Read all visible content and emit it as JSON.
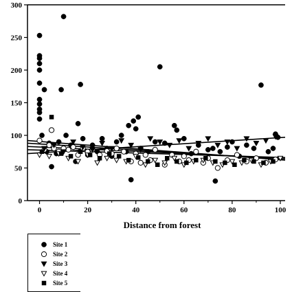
{
  "chart_data": {
    "type": "scatter",
    "title": "",
    "xlabel": "Distance from forest",
    "ylabel": "",
    "xlim": [
      -5,
      102
    ],
    "ylim": [
      0,
      300
    ],
    "xticks": [
      0,
      20,
      40,
      60,
      80,
      100
    ],
    "yticks": [
      0,
      50,
      100,
      150,
      200,
      250,
      300
    ],
    "legend_position": "bottom-left-outside",
    "series": [
      {
        "name": "Site 1",
        "marker": "filled-circle",
        "x": [
          0,
          0,
          0,
          0,
          0,
          0,
          0,
          0,
          0,
          0,
          0,
          1,
          2,
          3,
          4,
          5,
          7,
          8,
          9,
          10,
          11,
          13,
          15,
          16,
          17,
          18,
          20,
          22,
          24,
          26,
          28,
          30,
          32,
          34,
          36,
          37,
          38,
          39,
          40,
          41,
          42,
          45,
          48,
          50,
          52,
          55,
          56,
          57,
          60,
          63,
          66,
          70,
          72,
          73,
          75,
          78,
          80,
          83,
          86,
          89,
          92,
          95,
          97,
          98,
          99
        ],
        "y": [
          253,
          222,
          218,
          210,
          200,
          180,
          155,
          148,
          140,
          135,
          125,
          100,
          170,
          75,
          88,
          52,
          72,
          90,
          170,
          282,
          100,
          85,
          60,
          118,
          178,
          95,
          70,
          85,
          75,
          95,
          80,
          68,
          90,
          100,
          75,
          115,
          32,
          122,
          110,
          128,
          80,
          75,
          90,
          205,
          88,
          70,
          115,
          108,
          95,
          72,
          85,
          78,
          80,
          30,
          75,
          82,
          90,
          68,
          85,
          80,
          177,
          75,
          80,
          102,
          97
        ]
      },
      {
        "name": "Site 2",
        "marker": "open-circle",
        "x": [
          0,
          2,
          4,
          5,
          6,
          8,
          10,
          12,
          14,
          16,
          18,
          20,
          22,
          25,
          28,
          30,
          32,
          35,
          38,
          40,
          42,
          44,
          46,
          48,
          52,
          55,
          58,
          60,
          62,
          65,
          68,
          70,
          74,
          78,
          82,
          86,
          90,
          94,
          98
        ],
        "y": [
          92,
          78,
          85,
          108,
          80,
          75,
          80,
          78,
          82,
          70,
          80,
          75,
          78,
          70,
          76,
          72,
          80,
          75,
          60,
          72,
          58,
          70,
          62,
          78,
          55,
          70,
          60,
          68,
          62,
          75,
          58,
          65,
          50,
          62,
          70,
          60,
          65,
          58,
          63
        ]
      },
      {
        "name": "Site 3",
        "marker": "filled-triangle-down",
        "x": [
          2,
          6,
          10,
          14,
          18,
          22,
          26,
          30,
          34,
          38,
          42,
          46,
          50,
          54,
          58,
          62,
          66,
          70,
          74,
          78,
          82,
          86,
          90,
          94,
          98
        ],
        "y": [
          80,
          85,
          75,
          90,
          82,
          78,
          88,
          80,
          92,
          85,
          78,
          95,
          90,
          85,
          92,
          80,
          88,
          95,
          85,
          90,
          80,
          95,
          88,
          92,
          98
        ]
      },
      {
        "name": "Site 4",
        "marker": "open-triangle-down",
        "x": [
          0,
          4,
          8,
          12,
          16,
          20,
          24,
          28,
          32,
          36,
          40,
          44,
          48,
          52,
          56,
          60,
          64,
          68,
          72,
          76,
          80,
          84,
          88,
          92,
          96,
          100
        ],
        "y": [
          70,
          68,
          72,
          65,
          60,
          70,
          58,
          65,
          62,
          60,
          68,
          55,
          62,
          58,
          65,
          55,
          60,
          62,
          58,
          55,
          60,
          58,
          62,
          55,
          60,
          65
        ]
      },
      {
        "name": "Site 5",
        "marker": "filled-square",
        "x": [
          1,
          5,
          9,
          13,
          17,
          21,
          25,
          29,
          33,
          37,
          41,
          45,
          49,
          53,
          57,
          61,
          65,
          69,
          73,
          77,
          81,
          85,
          89,
          93,
          97
        ],
        "y": [
          75,
          128,
          72,
          68,
          75,
          70,
          65,
          72,
          68,
          62,
          66,
          60,
          55,
          65,
          60,
          58,
          62,
          65,
          60,
          58,
          55,
          62,
          60,
          58,
          60
        ]
      }
    ],
    "trend_lines": [
      {
        "x": [
          -5,
          102
        ],
        "y": [
          92,
          62
        ]
      },
      {
        "x": [
          -5,
          102
        ],
        "y": [
          88,
          63
        ]
      },
      {
        "x": [
          -5,
          102
        ],
        "y": [
          83,
          65
        ]
      },
      {
        "x": [
          -5,
          102
        ],
        "y": [
          78,
          66
        ]
      },
      {
        "x": [
          -5,
          102
        ],
        "y": [
          72,
          97
        ]
      }
    ]
  }
}
